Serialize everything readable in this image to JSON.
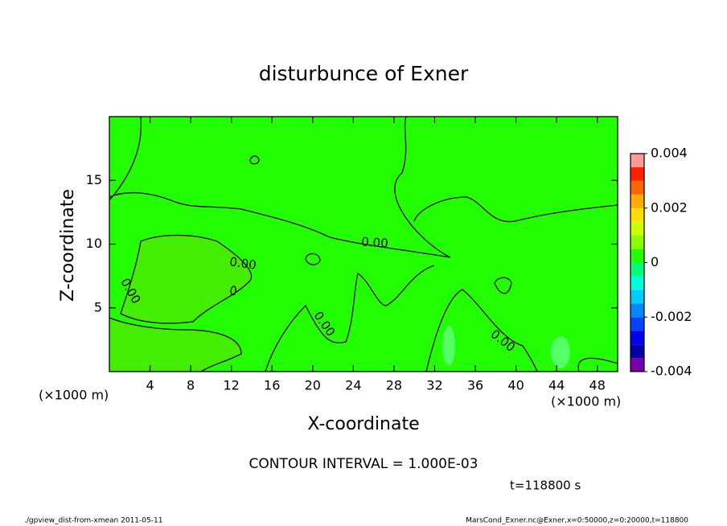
{
  "chart_data": {
    "type": "contour",
    "title": "disturbunce of Exner",
    "xlabel": "X-coordinate",
    "ylabel": "Z-coordinate",
    "xunit": "(×1000 m)",
    "yunit": "(×1000 m)",
    "xlim": [
      0,
      50
    ],
    "ylim": [
      0,
      20
    ],
    "xticks": [
      4,
      8,
      12,
      16,
      20,
      24,
      28,
      32,
      36,
      40,
      44,
      48
    ],
    "yticks": [
      5,
      10,
      15
    ],
    "contour_labels": [
      "0.00",
      "0.00",
      "0.00",
      "0.00",
      "0.00"
    ],
    "contour_interval": "CONTOUR INTERVAL = 1.000E-03",
    "time_label": "t=118800 s",
    "colorbar": {
      "lim": [
        -0.004,
        0.004
      ],
      "ticks": [
        -0.004,
        -0.002,
        0,
        0.002,
        0.004
      ],
      "levels": [
        -0.004,
        -0.0035,
        -0.003,
        -0.0025,
        -0.002,
        -0.0015,
        -0.001,
        -0.0005,
        0,
        0.0005,
        0.001,
        0.0015,
        0.002,
        0.0025,
        0.003,
        0.0035,
        0.004
      ],
      "colors": [
        "#7700aa",
        "#0000aa",
        "#0000ee",
        "#0044ff",
        "#0088ff",
        "#00ccff",
        "#00ffdd",
        "#00ff77",
        "#22ff00",
        "#88ff00",
        "#ccff00",
        "#ffdd00",
        "#ffaa00",
        "#ff6600",
        "#ff2200",
        "#ff9999"
      ]
    },
    "footer_left": "./gpview_dist-from-xmean  2011-05-11",
    "footer_right": "MarsCond_Exner.nc@Exner,x=0:50000,z=0:20000,t=118800"
  }
}
